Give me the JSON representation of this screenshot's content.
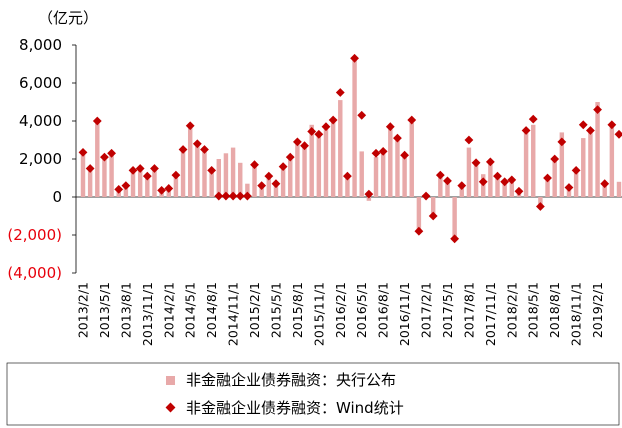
{
  "chart_data": {
    "type": "bar+scatter",
    "unit_label": "（亿元）",
    "ylim": [
      -4000,
      8000
    ],
    "y_ticks": [
      {
        "value": 8000,
        "label": "8,000",
        "color": "#000000"
      },
      {
        "value": 6000,
        "label": "6,000",
        "color": "#000000"
      },
      {
        "value": 4000,
        "label": "4,000",
        "color": "#000000"
      },
      {
        "value": 2000,
        "label": "2,000",
        "color": "#000000"
      },
      {
        "value": 0,
        "label": "0",
        "color": "#000000"
      },
      {
        "value": -2000,
        "label": "(2,000)",
        "color": "#e8000b"
      },
      {
        "value": -4000,
        "label": "(4,000)",
        "color": "#e8000b"
      }
    ],
    "x_tick_labels": [
      "2013/2/1",
      "2013/5/1",
      "2013/8/1",
      "2013/11/1",
      "2014/2/1",
      "2014/5/1",
      "2014/8/1",
      "2014/11/1",
      "2015/2/1",
      "2015/5/1",
      "2015/8/1",
      "2015/11/1",
      "2016/2/1",
      "2016/5/1",
      "2016/8/1",
      "2016/11/1",
      "2017/2/1",
      "2017/5/1",
      "2017/8/1",
      "2017/11/1",
      "2018/2/1",
      "2018/5/1",
      "2018/8/1",
      "2018/11/1",
      "2019/2/1"
    ],
    "series": [
      {
        "name": "非金融企业债券融资：央行公布",
        "kind": "bar",
        "color": "#e8a9a9",
        "values": [
          2300,
          1500,
          4000,
          2200,
          2300,
          400,
          600,
          1400,
          1500,
          1100,
          1500,
          350,
          450,
          1150,
          2500,
          3700,
          2800,
          2500,
          1400,
          2000,
          2300,
          2600,
          1800,
          700,
          1700,
          600,
          1000,
          700,
          1600,
          2100,
          2900,
          2800,
          3800,
          3300,
          3700,
          4000,
          5100,
          1100,
          7400,
          2400,
          -200,
          2100,
          2400,
          3600,
          3100,
          2100,
          3900,
          -1900,
          0,
          -1000,
          1100,
          900,
          -2200,
          600,
          2600,
          1700,
          1200,
          1800,
          1100,
          800,
          900,
          300,
          3400,
          3800,
          -500,
          1000,
          2000,
          3400,
          500,
          1400,
          3100,
          3500,
          5000,
          700,
          3800,
          800
        ]
      },
      {
        "name": "非金融企业债券融资：Wind统计",
        "kind": "scatter",
        "color": "#c00000",
        "values": [
          2350,
          1500,
          4000,
          2100,
          2300,
          400,
          600,
          1400,
          1500,
          1100,
          1500,
          350,
          450,
          1150,
          2500,
          3750,
          2800,
          2500,
          1400,
          50,
          50,
          50,
          50,
          50,
          1700,
          600,
          1100,
          700,
          1600,
          2100,
          2900,
          2700,
          3450,
          3300,
          3700,
          4050,
          5500,
          1100,
          7300,
          4300,
          150,
          2300,
          2400,
          3700,
          3100,
          2200,
          4050,
          -1800,
          50,
          -1000,
          1150,
          850,
          -2200,
          600,
          3000,
          1800,
          800,
          1850,
          1100,
          800,
          900,
          300,
          3500,
          4100,
          -500,
          1000,
          2000,
          2900,
          500,
          1400,
          3800,
          3500,
          4600,
          700,
          3800,
          3300
        ]
      }
    ]
  }
}
